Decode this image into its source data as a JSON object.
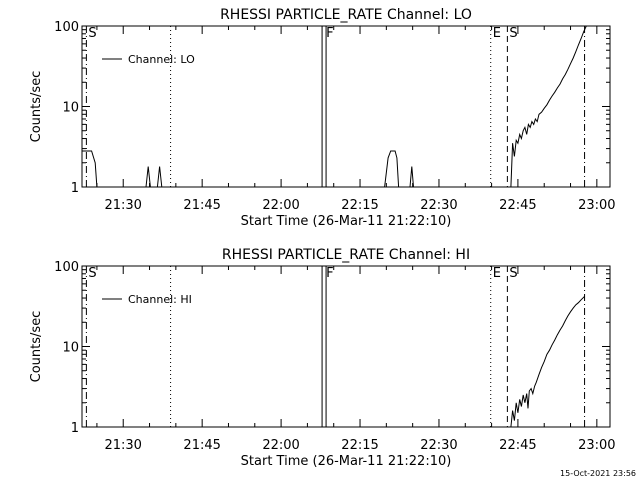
{
  "footer_date": "15-Oct-2021 23:56",
  "chart_data": [
    {
      "type": "line",
      "title": "RHESSI PARTICLE_RATE Channel: LO",
      "xlabel": "Start Time (26-Mar-11 21:22:10)",
      "ylabel": "Counts/sec",
      "y_scale": "log",
      "ylim": [
        1,
        100
      ],
      "xlim": [
        "21:22:10",
        "23:02:30"
      ],
      "y_ticks": [
        "1",
        "10",
        "100"
      ],
      "x_ticks": [
        "21:30",
        "21:45",
        "22:00",
        "22:15",
        "22:30",
        "22:45",
        "23:00"
      ],
      "legend": {
        "placement": "top-left",
        "entries": [
          "Channel: LO"
        ]
      },
      "markers": [
        {
          "label": "S",
          "time": "21:23:00",
          "style": "dash-dot"
        },
        {
          "label": "",
          "time": "21:39:00",
          "style": "dotted"
        },
        {
          "label": "F",
          "time": "22:08:10",
          "style": "double-solid"
        },
        {
          "label": "E",
          "time": "22:39:50",
          "style": "dotted"
        },
        {
          "label": "S",
          "time": "22:43:00",
          "style": "dashed"
        },
        {
          "label": "",
          "time": "22:57:40",
          "style": "dash-dot"
        }
      ],
      "series": [
        {
          "name": "Channel: LO",
          "points": [
            [
              "21:22:10",
              2.8
            ],
            [
              "21:24:00",
              2.8
            ],
            [
              "21:24:40",
              2.0
            ],
            [
              "21:25:00",
              1.0
            ],
            [
              "21:34:20",
              1.0
            ],
            [
              "21:34:45",
              1.8
            ],
            [
              "21:35:10",
              1.0
            ],
            [
              "21:36:30",
              1.0
            ],
            [
              "21:36:55",
              1.8
            ],
            [
              "21:37:20",
              1.0
            ],
            [
              "22:19:40",
              1.0
            ],
            [
              "22:20:20",
              2.3
            ],
            [
              "22:20:50",
              2.8
            ],
            [
              "22:21:40",
              2.8
            ],
            [
              "22:22:00",
              2.3
            ],
            [
              "22:22:20",
              1.0
            ],
            [
              "22:24:30",
              1.0
            ],
            [
              "22:24:50",
              1.8
            ],
            [
              "22:25:10",
              1.0
            ],
            [
              "22:43:40",
              1.0
            ],
            [
              "22:44:00",
              3.5
            ],
            [
              "22:44:20",
              2.4
            ],
            [
              "22:44:40",
              3.8
            ],
            [
              "22:45:00",
              3.5
            ],
            [
              "22:45:20",
              4.5
            ],
            [
              "22:45:40",
              4.0
            ],
            [
              "22:46:00",
              5.0
            ],
            [
              "22:46:20",
              5.5
            ],
            [
              "22:46:40",
              4.5
            ],
            [
              "22:47:00",
              6.0
            ],
            [
              "22:47:20",
              5.5
            ],
            [
              "22:47:40",
              6.5
            ],
            [
              "22:48:00",
              6.0
            ],
            [
              "22:48:20",
              7.0
            ],
            [
              "22:48:40",
              6.5
            ],
            [
              "22:49:00",
              8.0
            ],
            [
              "22:49:30",
              8.5
            ],
            [
              "22:50:00",
              9.5
            ],
            [
              "22:50:30",
              10.5
            ],
            [
              "22:51:00",
              12.0
            ],
            [
              "22:51:30",
              13.5
            ],
            [
              "22:52:00",
              15.0
            ],
            [
              "22:52:30",
              17.0
            ],
            [
              "22:53:00",
              19.0
            ],
            [
              "22:53:30",
              22.0
            ],
            [
              "22:54:00",
              25.0
            ],
            [
              "22:54:30",
              29.0
            ],
            [
              "22:55:00",
              34.0
            ],
            [
              "22:55:30",
              40.0
            ],
            [
              "22:56:00",
              48.0
            ],
            [
              "22:56:30",
              58.0
            ],
            [
              "22:57:00",
              70.0
            ],
            [
              "22:57:30",
              85.0
            ],
            [
              "22:58:00",
              100.0
            ]
          ]
        }
      ]
    },
    {
      "type": "line",
      "title": "RHESSI PARTICLE_RATE Channel: HI",
      "xlabel": "Start Time (26-Mar-11 21:22:10)",
      "ylabel": "Counts/sec",
      "y_scale": "log",
      "ylim": [
        1,
        100
      ],
      "xlim": [
        "21:22:10",
        "23:02:30"
      ],
      "y_ticks": [
        "1",
        "10",
        "100"
      ],
      "x_ticks": [
        "21:30",
        "21:45",
        "22:00",
        "22:15",
        "22:30",
        "22:45",
        "23:00"
      ],
      "legend": {
        "placement": "top-left",
        "entries": [
          "Channel: HI"
        ]
      },
      "markers": [
        {
          "label": "S",
          "time": "21:23:00",
          "style": "dash-dot"
        },
        {
          "label": "",
          "time": "21:39:00",
          "style": "dotted"
        },
        {
          "label": "F",
          "time": "22:08:10",
          "style": "double-solid"
        },
        {
          "label": "E",
          "time": "22:39:50",
          "style": "dotted"
        },
        {
          "label": "S",
          "time": "22:43:00",
          "style": "dashed"
        },
        {
          "label": "",
          "time": "22:57:40",
          "style": "dash-dot"
        }
      ],
      "series": [
        {
          "name": "Channel: HI",
          "points": [
            [
              "22:43:40",
              1.0
            ],
            [
              "22:44:00",
              1.6
            ],
            [
              "22:44:20",
              1.2
            ],
            [
              "22:44:40",
              2.0
            ],
            [
              "22:45:00",
              1.5
            ],
            [
              "22:45:20",
              2.2
            ],
            [
              "22:45:40",
              1.8
            ],
            [
              "22:46:00",
              2.5
            ],
            [
              "22:46:20",
              2.0
            ],
            [
              "22:46:40",
              2.6
            ],
            [
              "22:46:55",
              1.7
            ],
            [
              "22:47:10",
              2.8
            ],
            [
              "22:47:30",
              3.0
            ],
            [
              "22:47:50",
              2.6
            ],
            [
              "22:48:10",
              3.2
            ],
            [
              "22:48:30",
              3.6
            ],
            [
              "22:49:00",
              4.5
            ],
            [
              "22:49:30",
              5.5
            ],
            [
              "22:50:00",
              6.5
            ],
            [
              "22:50:30",
              8.0
            ],
            [
              "22:51:00",
              9.0
            ],
            [
              "22:51:30",
              10.5
            ],
            [
              "22:52:00",
              12.0
            ],
            [
              "22:52:30",
              14.0
            ],
            [
              "22:53:00",
              16.0
            ],
            [
              "22:53:30",
              18.0
            ],
            [
              "22:54:00",
              21.0
            ],
            [
              "22:54:30",
              24.0
            ],
            [
              "22:55:00",
              27.0
            ],
            [
              "22:55:30",
              30.0
            ],
            [
              "22:56:00",
              33.0
            ],
            [
              "22:56:30",
              35.0
            ],
            [
              "22:57:00",
              38.0
            ],
            [
              "22:57:40",
              42.0
            ]
          ]
        }
      ]
    }
  ]
}
